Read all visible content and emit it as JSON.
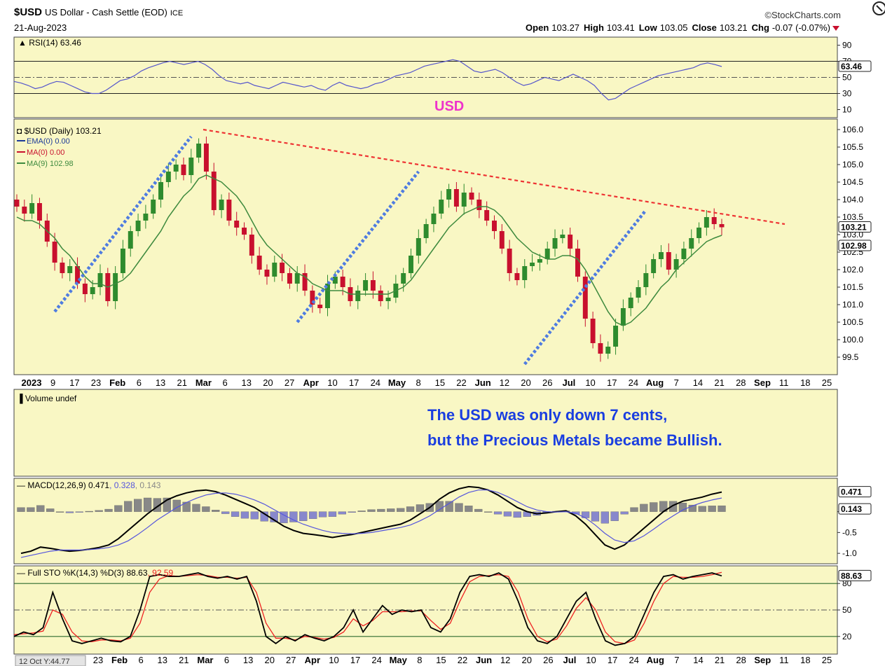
{
  "header": {
    "symbol": "$USD",
    "description": "US Dollar - Cash Settle (EOD)",
    "exchange": "ICE",
    "date": "21-Aug-2023",
    "brand": "©StockCharts.com",
    "ohlc": [
      {
        "label": "Open",
        "value": "103.27"
      },
      {
        "label": "High",
        "value": "103.41"
      },
      {
        "label": "Low",
        "value": "103.05"
      },
      {
        "label": "Close",
        "value": "103.21"
      },
      {
        "label": "Chg",
        "value": "-0.07 (-0.07%)"
      }
    ]
  },
  "colors": {
    "panel_bg": "#f9f7c4",
    "border": "#444444",
    "up": "#2e8b2e",
    "down": "#c8102e",
    "rsi_line": "#5555cc",
    "ma_line": "#3e8a3e",
    "trend_red": "#ee3333",
    "trend_blue": "#4f7ce0",
    "annotation": "#1a3ee0",
    "usd_label": "#ee33cc",
    "macd_line": "#000000",
    "signal_line": "#5555dd",
    "histogram": "#8888aa",
    "sto_k": "#000000",
    "sto_d": "#ee2222",
    "hline": "#2e6b2e"
  },
  "annotations": {
    "usd_label": "USD",
    "note_line1": "The USD was only down 7 cents,",
    "note_line2": "but the Precious Metals became Bullish."
  },
  "footer": {
    "cursor_readout": "12 Oct Y:44.77"
  },
  "chart_data": [
    {
      "type": "line",
      "name": "rsi-panel",
      "title": "RSI(14) 63.46",
      "last_value": "63.46",
      "ylim": [
        0,
        100
      ],
      "yticks": [
        "90",
        "70",
        "50",
        "30",
        "10"
      ],
      "levels": [
        70,
        30
      ],
      "series": [
        {
          "name": "RSI(14)",
          "values": [
            45,
            43,
            40,
            36,
            38,
            42,
            45,
            44,
            40,
            36,
            32,
            30,
            30,
            34,
            40,
            46,
            48,
            52,
            58,
            62,
            65,
            68,
            70,
            68,
            66,
            68,
            70,
            66,
            60,
            52,
            46,
            44,
            42,
            44,
            40,
            38,
            36,
            40,
            44,
            42,
            40,
            38,
            40,
            36,
            34,
            40,
            44,
            40,
            38,
            36,
            38,
            42,
            44,
            48,
            52,
            54,
            56,
            60,
            64,
            66,
            68,
            70,
            72,
            70,
            64,
            58,
            56,
            58,
            60,
            56,
            50,
            44,
            40,
            42,
            46,
            50,
            48,
            46,
            50,
            54,
            50,
            46,
            40,
            30,
            22,
            24,
            30,
            36,
            40,
            44,
            48,
            52,
            54,
            56,
            58,
            60,
            62,
            66,
            68,
            66,
            63.46
          ]
        }
      ]
    },
    {
      "type": "candlestick",
      "name": "price-panel",
      "title": "$USD (Daily) 103.21",
      "legend": [
        {
          "label": "EMA(0) 0.00",
          "color": "#1c3a99"
        },
        {
          "label": "MA(0) 0.00",
          "color": "#c8102e"
        },
        {
          "label": "MA(9) 102.98",
          "color": "#3e8a3e"
        }
      ],
      "ylim": [
        99,
        106.3
      ],
      "yticks": [
        "106.0",
        "105.5",
        "105.0",
        "104.5",
        "104.0",
        "103.5",
        "103.0",
        "102.5",
        "102.0",
        "101.5",
        "101.0",
        "100.5",
        "100.0",
        "99.5"
      ],
      "last_close": "103.21",
      "last_ma": "102.98",
      "close": [
        103.8,
        103.6,
        103.9,
        103.4,
        102.8,
        102.2,
        101.9,
        102.1,
        101.6,
        101.3,
        101.5,
        101.9,
        101.1,
        101.9,
        102.6,
        103.1,
        103.4,
        103.6,
        104.0,
        104.5,
        104.8,
        105.0,
        104.7,
        105.2,
        105.6,
        104.8,
        103.7,
        104.0,
        103.4,
        103.2,
        103.0,
        102.4,
        102.0,
        101.8,
        102.2,
        101.9,
        101.6,
        101.9,
        101.4,
        101.0,
        100.9,
        101.6,
        101.8,
        101.5,
        101.1,
        101.4,
        101.7,
        101.4,
        101.1,
        101.2,
        101.6,
        101.9,
        102.4,
        102.9,
        103.3,
        103.6,
        104.0,
        104.3,
        103.8,
        104.2,
        104.0,
        103.7,
        103.4,
        103.1,
        102.6,
        101.9,
        101.7,
        102.1,
        102.2,
        102.3,
        102.6,
        102.9,
        103.0,
        102.6,
        101.8,
        100.6,
        99.9,
        99.6,
        99.8,
        100.4,
        100.9,
        101.2,
        101.5,
        101.9,
        102.3,
        102.5,
        102.0,
        102.3,
        102.6,
        102.9,
        103.2,
        103.5,
        103.3,
        103.21
      ],
      "ma9": [
        103.5,
        103.4,
        103.4,
        103.3,
        103.1,
        102.9,
        102.6,
        102.4,
        102.1,
        101.8,
        101.6,
        101.6,
        101.5,
        101.6,
        101.7,
        101.9,
        102.2,
        102.5,
        102.8,
        103.1,
        103.5,
        103.8,
        104.1,
        104.3,
        104.6,
        104.7,
        104.6,
        104.5,
        104.3,
        104.1,
        103.8,
        103.4,
        103.0,
        102.7,
        102.5,
        102.3,
        102.1,
        101.9,
        101.8,
        101.6,
        101.5,
        101.4,
        101.4,
        101.4,
        101.3,
        101.3,
        101.3,
        101.3,
        101.3,
        101.3,
        101.4,
        101.5,
        101.7,
        102.0,
        102.3,
        102.6,
        102.9,
        103.2,
        103.4,
        103.6,
        103.7,
        103.8,
        103.8,
        103.7,
        103.5,
        103.2,
        102.9,
        102.7,
        102.5,
        102.4,
        102.3,
        102.3,
        102.4,
        102.4,
        102.3,
        102.0,
        101.6,
        101.2,
        100.8,
        100.5,
        100.4,
        100.5,
        100.7,
        100.9,
        101.2,
        101.5,
        101.7,
        102.0,
        102.2,
        102.4,
        102.6,
        102.8,
        102.9,
        102.98
      ],
      "trendline_resistance": [
        {
          "x": 0,
          "y": 106.0
        },
        {
          "x": 105,
          "y": 103.3
        }
      ],
      "trendlines_support": [
        [
          {
            "x": 5,
            "y": 100.8
          },
          {
            "x": 23,
            "y": 105.8
          }
        ],
        [
          {
            "x": 37,
            "y": 100.5
          },
          {
            "x": 53,
            "y": 104.8
          }
        ],
        [
          {
            "x": 67,
            "y": 99.3
          },
          {
            "x": 83,
            "y": 103.7
          }
        ]
      ]
    },
    {
      "type": "bar",
      "name": "volume-panel",
      "title": "Volume undef"
    },
    {
      "type": "line",
      "name": "macd-panel",
      "title": "MACD(12,26,9)",
      "title_values": [
        "0.471",
        "0.328",
        "0.143"
      ],
      "ylim": [
        -1.25,
        0.8
      ],
      "yticks": [
        "0.0",
        "-0.5",
        "-1.0"
      ],
      "last_values": [
        "0.471",
        "0.143"
      ],
      "series": [
        {
          "name": "MACD",
          "values": [
            -1.0,
            -0.95,
            -0.85,
            -0.88,
            -0.92,
            -0.95,
            -0.93,
            -0.9,
            -0.86,
            -0.8,
            -0.65,
            -0.45,
            -0.25,
            -0.05,
            0.12,
            0.28,
            0.38,
            0.45,
            0.5,
            0.52,
            0.48,
            0.4,
            0.3,
            0.2,
            0.1,
            -0.05,
            -0.2,
            -0.35,
            -0.45,
            -0.52,
            -0.55,
            -0.58,
            -0.62,
            -0.58,
            -0.55,
            -0.5,
            -0.45,
            -0.4,
            -0.35,
            -0.3,
            -0.2,
            -0.05,
            0.1,
            0.3,
            0.45,
            0.55,
            0.6,
            0.58,
            0.52,
            0.4,
            0.25,
            0.1,
            0.0,
            -0.05,
            -0.03,
            0.0,
            0.02,
            -0.1,
            -0.3,
            -0.55,
            -0.8,
            -0.9,
            -0.8,
            -0.6,
            -0.4,
            -0.2,
            0.0,
            0.15,
            0.25,
            0.3,
            0.35,
            0.42,
            0.471
          ]
        },
        {
          "name": "Signal",
          "values": [
            -1.1,
            -1.05,
            -1.0,
            -0.95,
            -0.92,
            -0.92,
            -0.92,
            -0.91,
            -0.89,
            -0.86,
            -0.8,
            -0.7,
            -0.55,
            -0.38,
            -0.2,
            -0.05,
            0.1,
            0.22,
            0.32,
            0.4,
            0.44,
            0.45,
            0.42,
            0.36,
            0.28,
            0.18,
            0.05,
            -0.08,
            -0.2,
            -0.3,
            -0.38,
            -0.45,
            -0.5,
            -0.52,
            -0.53,
            -0.52,
            -0.5,
            -0.46,
            -0.42,
            -0.38,
            -0.32,
            -0.22,
            -0.1,
            0.05,
            0.2,
            0.35,
            0.46,
            0.52,
            0.52,
            0.46,
            0.36,
            0.24,
            0.12,
            0.04,
            0.0,
            -0.01,
            0.0,
            -0.04,
            -0.15,
            -0.32,
            -0.52,
            -0.68,
            -0.74,
            -0.7,
            -0.58,
            -0.42,
            -0.25,
            -0.1,
            0.04,
            0.14,
            0.22,
            0.28,
            0.328
          ]
        },
        {
          "name": "Histogram",
          "values": [
            0.1,
            0.1,
            0.15,
            0.07,
            0.0,
            -0.03,
            -0.01,
            0.01,
            0.03,
            0.06,
            0.15,
            0.25,
            0.3,
            0.33,
            0.32,
            0.33,
            0.28,
            0.23,
            0.18,
            0.12,
            0.04,
            -0.05,
            -0.12,
            -0.16,
            -0.18,
            -0.23,
            -0.25,
            -0.27,
            -0.25,
            -0.22,
            -0.17,
            -0.13,
            -0.12,
            -0.06,
            -0.02,
            0.02,
            0.05,
            0.06,
            0.07,
            0.08,
            0.12,
            0.17,
            0.2,
            0.25,
            0.25,
            0.2,
            0.14,
            0.06,
            0.0,
            -0.06,
            -0.11,
            -0.14,
            -0.12,
            -0.09,
            -0.03,
            0.01,
            0.02,
            -0.06,
            -0.15,
            -0.23,
            -0.28,
            -0.22,
            -0.06,
            0.1,
            0.18,
            0.22,
            0.25,
            0.25,
            0.21,
            0.16,
            0.13,
            0.14,
            0.143
          ]
        }
      ]
    },
    {
      "type": "line",
      "name": "sto-panel",
      "title": "Full STO %K(14,3) %D(3)",
      "title_values": [
        "88.63",
        "92.59"
      ],
      "ylim": [
        0,
        100
      ],
      "yticks": [
        "80",
        "50",
        "20"
      ],
      "levels": [
        80,
        50,
        20
      ],
      "last_value": "88.63",
      "series": [
        {
          "name": "%K",
          "values": [
            20,
            25,
            22,
            30,
            70,
            40,
            15,
            12,
            15,
            18,
            15,
            14,
            20,
            50,
            88,
            90,
            88,
            88,
            90,
            92,
            88,
            86,
            88,
            85,
            88,
            60,
            20,
            12,
            20,
            15,
            22,
            18,
            15,
            20,
            30,
            50,
            25,
            40,
            55,
            45,
            50,
            48,
            50,
            30,
            25,
            40,
            70,
            88,
            90,
            88,
            92,
            85,
            60,
            30,
            15,
            12,
            20,
            40,
            60,
            70,
            40,
            15,
            10,
            12,
            20,
            45,
            70,
            88,
            90,
            85,
            88,
            90,
            92,
            88.63
          ]
        },
        {
          "name": "%D",
          "values": [
            22,
            23,
            24,
            26,
            50,
            45,
            25,
            15,
            14,
            16,
            16,
            15,
            18,
            35,
            70,
            85,
            89,
            88,
            89,
            90,
            89,
            87,
            87,
            86,
            87,
            70,
            35,
            18,
            18,
            16,
            20,
            19,
            17,
            19,
            25,
            40,
            32,
            38,
            48,
            48,
            48,
            49,
            49,
            38,
            28,
            35,
            60,
            82,
            88,
            89,
            90,
            88,
            70,
            40,
            20,
            14,
            17,
            32,
            52,
            64,
            50,
            25,
            14,
            12,
            16,
            35,
            60,
            80,
            88,
            87,
            87,
            88,
            90,
            92.59
          ]
        }
      ]
    }
  ],
  "xaxis_labels": {
    "price_axis": [
      {
        "label": "2023",
        "bold": true
      },
      {
        "label": "9"
      },
      {
        "label": "17"
      },
      {
        "label": "23"
      },
      {
        "label": "Feb",
        "bold": true
      },
      {
        "label": "6"
      },
      {
        "label": "13"
      },
      {
        "label": "21"
      },
      {
        "label": "Mar",
        "bold": true
      },
      {
        "label": "6"
      },
      {
        "label": "13"
      },
      {
        "label": "20"
      },
      {
        "label": "27"
      },
      {
        "label": "Apr",
        "bold": true
      },
      {
        "label": "10"
      },
      {
        "label": "17"
      },
      {
        "label": "24"
      },
      {
        "label": "May",
        "bold": true
      },
      {
        "label": "8"
      },
      {
        "label": "15"
      },
      {
        "label": "22"
      },
      {
        "label": "Jun",
        "bold": true
      },
      {
        "label": "12"
      },
      {
        "label": "20"
      },
      {
        "label": "26"
      },
      {
        "label": "Jul",
        "bold": true
      },
      {
        "label": "10"
      },
      {
        "label": "17"
      },
      {
        "label": "24"
      },
      {
        "label": "Aug",
        "bold": true
      },
      {
        "label": "7"
      },
      {
        "label": "14"
      },
      {
        "label": "21"
      },
      {
        "label": "28"
      },
      {
        "label": "Sep",
        "bold": true
      },
      {
        "label": "11"
      },
      {
        "label": "18"
      },
      {
        "label": "25"
      }
    ],
    "bottom_axis": [
      {
        "label": "23"
      },
      {
        "label": "Feb",
        "bold": true
      },
      {
        "label": "6"
      },
      {
        "label": "13"
      },
      {
        "label": "21"
      },
      {
        "label": "Mar",
        "bold": true
      },
      {
        "label": "6"
      },
      {
        "label": "13"
      },
      {
        "label": "20"
      },
      {
        "label": "27"
      },
      {
        "label": "Apr",
        "bold": true
      },
      {
        "label": "10"
      },
      {
        "label": "17"
      },
      {
        "label": "24"
      },
      {
        "label": "May",
        "bold": true
      },
      {
        "label": "8"
      },
      {
        "label": "15"
      },
      {
        "label": "22"
      },
      {
        "label": "Jun",
        "bold": true
      },
      {
        "label": "12"
      },
      {
        "label": "20"
      },
      {
        "label": "26"
      },
      {
        "label": "Jul",
        "bold": true
      },
      {
        "label": "10"
      },
      {
        "label": "17"
      },
      {
        "label": "24"
      },
      {
        "label": "Aug",
        "bold": true
      },
      {
        "label": "7"
      },
      {
        "label": "14"
      },
      {
        "label": "21"
      },
      {
        "label": "28"
      },
      {
        "label": "Sep",
        "bold": true
      },
      {
        "label": "11"
      },
      {
        "label": "18"
      },
      {
        "label": "25"
      }
    ]
  }
}
